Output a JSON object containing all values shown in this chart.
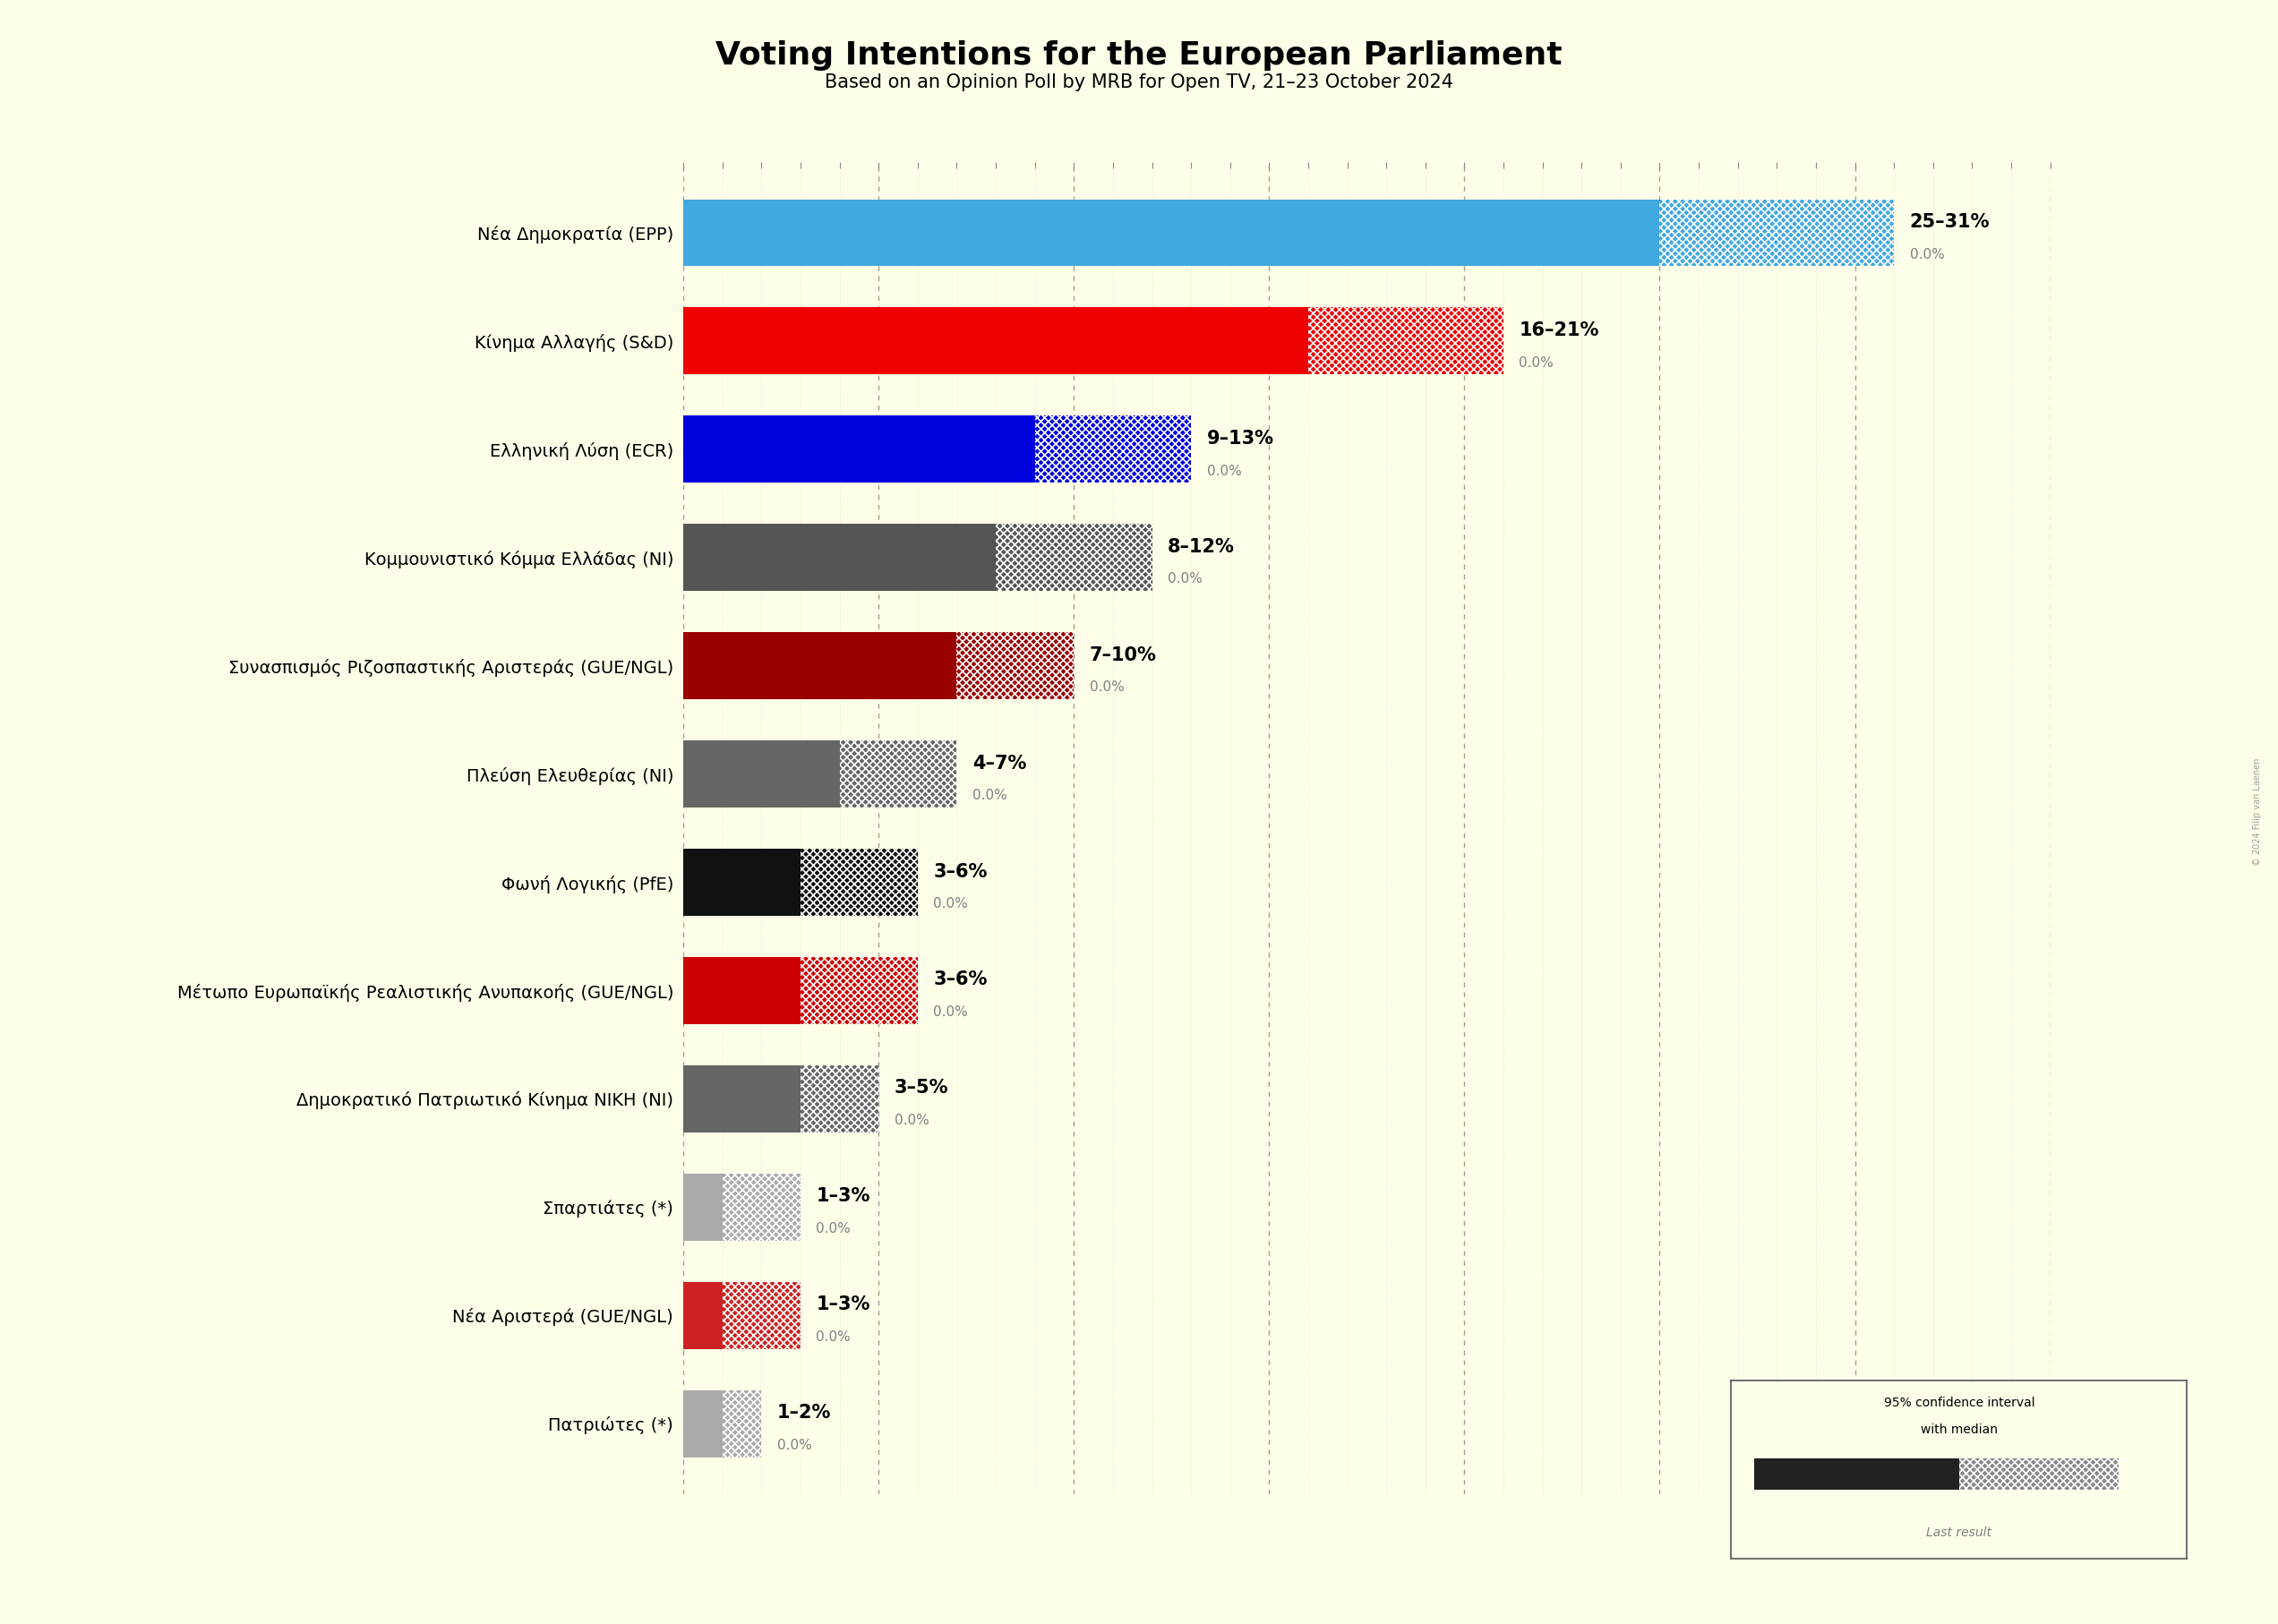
{
  "title": "Voting Intentions for the European Parliament",
  "subtitle": "Based on an Opinion Poll by MRB for Open TV, 21–23 October 2024",
  "background_color": "#FEFEE8",
  "parties": [
    {
      "name": "Nέα Δημοκρατία (EPP)",
      "low": 25,
      "high": 31,
      "median": 0.0,
      "solid_color": "#42A8E0",
      "label": "25–31%"
    },
    {
      "name": "Κίνημα Αλλαγής (S&D)",
      "low": 16,
      "high": 21,
      "median": 0.0,
      "solid_color": "#EE0000",
      "label": "16–21%"
    },
    {
      "name": "Ελληνική Λύση (ECR)",
      "low": 9,
      "high": 13,
      "median": 0.0,
      "solid_color": "#0000DD",
      "label": "9–13%"
    },
    {
      "name": "Κομμουνιστικό Κόμμα Ελλάδας (NI)",
      "low": 8,
      "high": 12,
      "median": 0.0,
      "solid_color": "#555555",
      "label": "8–12%"
    },
    {
      "name": "Συνασπισμός Ριζοσπαστικής Αριστεράς (GUE/NGL)",
      "low": 7,
      "high": 10,
      "median": 0.0,
      "solid_color": "#990000",
      "label": "7–10%"
    },
    {
      "name": "Πλεύση Ελευθερίας (NI)",
      "low": 4,
      "high": 7,
      "median": 0.0,
      "solid_color": "#666666",
      "label": "4–7%"
    },
    {
      "name": "Φωνή Λογικής (PfE)",
      "low": 3,
      "high": 6,
      "median": 0.0,
      "solid_color": "#111111",
      "label": "3–6%"
    },
    {
      "name": "Μέτωπο Ευρωπαϊκής Ρεαλιστικής Ανυπακοής (GUE/NGL)",
      "low": 3,
      "high": 6,
      "median": 0.0,
      "solid_color": "#CC0000",
      "label": "3–6%"
    },
    {
      "name": "Δημοκρατικό Πατριωτικό Κίνημα ΝΙΚΗ (NI)",
      "low": 3,
      "high": 5,
      "median": 0.0,
      "solid_color": "#666666",
      "label": "3–5%"
    },
    {
      "name": "Σπαρτιάτες (*)",
      "low": 1,
      "high": 3,
      "median": 0.0,
      "solid_color": "#AAAAAA",
      "label": "1–3%"
    },
    {
      "name": "Νέα Αριστερά (GUE/NGL)",
      "low": 1,
      "high": 3,
      "median": 0.0,
      "solid_color": "#CC2222",
      "label": "1–3%"
    },
    {
      "name": "Πατριώτες (*)",
      "low": 1,
      "high": 2,
      "median": 0.0,
      "solid_color": "#AAAAAA",
      "label": "1–2%"
    }
  ],
  "xlim": [
    0,
    35
  ],
  "title_fontsize": 26,
  "subtitle_fontsize": 15,
  "bar_height": 0.62,
  "watermark": "© 2024 Filip van Laenen"
}
